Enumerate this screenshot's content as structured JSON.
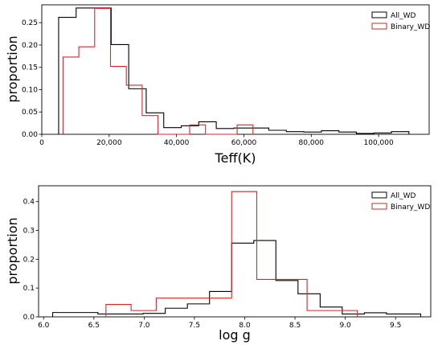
{
  "chart_data": [
    {
      "type": "histogram",
      "xlabel": "Teff(K)",
      "ylabel": "proportion",
      "xlim": [
        0,
        115000
      ],
      "ylim": [
        0,
        0.29
      ],
      "xticks": [
        0,
        20000,
        40000,
        60000,
        80000,
        100000
      ],
      "xtick_labels": [
        "0",
        "20,000",
        "40,000",
        "60,000",
        "80,000",
        "100,000"
      ],
      "yticks": [
        0,
        0.05,
        0.1,
        0.15,
        0.2,
        0.25
      ],
      "ytick_labels": [
        "0.00",
        "0.05",
        "0.10",
        "0.15",
        "0.20",
        "0.25"
      ],
      "legend_position": "top-right",
      "grid": false,
      "series": [
        {
          "name": "All_WD",
          "color": "#000000",
          "bin_edges": [
            5000,
            10200,
            15400,
            20600,
            25800,
            31000,
            36200,
            41400,
            46600,
            51800,
            57000,
            62200,
            67400,
            72600,
            77800,
            83000,
            88200,
            93400,
            98600,
            103800,
            109000
          ],
          "values": [
            0.262,
            0.283,
            0.283,
            0.201,
            0.102,
            0.048,
            0.015,
            0.019,
            0.028,
            0.013,
            0.014,
            0.014,
            0.009,
            0.006,
            0.005,
            0.008,
            0.005,
            0.002,
            0.003,
            0.006
          ]
        },
        {
          "name": "Binary_WD",
          "color": "#d62728",
          "bin_edges": [
            6300,
            11000,
            15700,
            20400,
            25100,
            29800,
            34500,
            39200,
            43900,
            48600,
            53300,
            58000,
            62700
          ],
          "values": [
            0.173,
            0.196,
            0.282,
            0.152,
            0.11,
            0.042,
            0.0,
            0.0,
            0.021,
            0.0,
            0.0,
            0.021
          ]
        }
      ]
    },
    {
      "type": "histogram",
      "xlabel": "log g",
      "ylabel": "proportion",
      "xlim": [
        5.95,
        9.85
      ],
      "ylim": [
        0,
        0.455
      ],
      "xticks": [
        6.0,
        6.5,
        7.0,
        7.5,
        8.0,
        8.5,
        9.0,
        9.5
      ],
      "xtick_labels": [
        "6.0",
        "6.5",
        "7.0",
        "7.5",
        "8.0",
        "8.5",
        "9.0",
        "9.5"
      ],
      "yticks": [
        0,
        0.1,
        0.2,
        0.3,
        0.4
      ],
      "ytick_labels": [
        "0.0",
        "0.1",
        "0.2",
        "0.3",
        "0.4"
      ],
      "legend_position": "top-right",
      "grid": false,
      "series": [
        {
          "name": "All_WD",
          "color": "#000000",
          "bin_edges": [
            6.09,
            6.54,
            6.99,
            7.21,
            7.43,
            7.65,
            7.87,
            8.09,
            8.31,
            8.53,
            8.75,
            8.97,
            9.19,
            9.41,
            9.75
          ],
          "values": [
            0.015,
            0.01,
            0.012,
            0.03,
            0.045,
            0.088,
            0.256,
            0.265,
            0.126,
            0.08,
            0.034,
            0.01,
            0.014,
            0.01
          ]
        },
        {
          "name": "Binary_WD",
          "color": "#d62728",
          "bin_edges": [
            6.62,
            6.87,
            7.12,
            7.37,
            7.62,
            7.87,
            8.12,
            8.37,
            8.62,
            8.87,
            9.12
          ],
          "values": [
            0.043,
            0.022,
            0.065,
            0.065,
            0.065,
            0.435,
            0.13,
            0.13,
            0.022,
            0.022
          ]
        }
      ]
    }
  ]
}
